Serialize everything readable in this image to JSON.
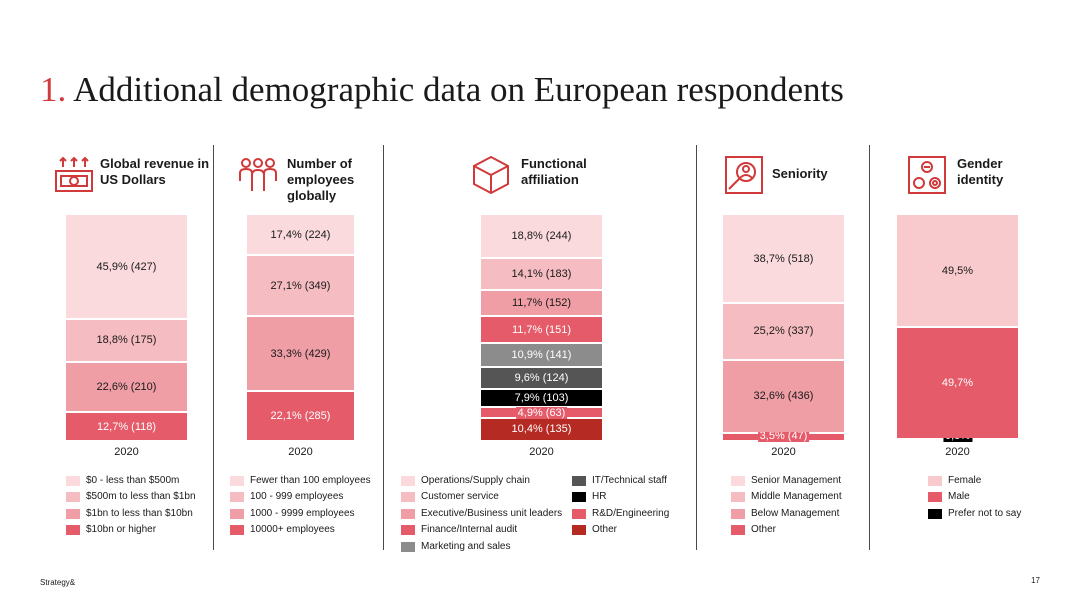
{
  "slide": {
    "title_number": "1.",
    "title_text": "Additional demographic data on European respondents",
    "footer": "Strategy&",
    "page_number": "17"
  },
  "colors": {
    "lightest": "#fadadd",
    "light": "#f5bcc1",
    "medium": "#ef9ea5",
    "red": "#e55b69",
    "darkgray": "#555555",
    "midgray": "#8c8c8c",
    "black": "#000000",
    "darkred": "#b52a22",
    "title_accent": "#d13a3a"
  },
  "chart_data": [
    {
      "type": "bar",
      "stacked": true,
      "title": "Global revenue in US Dollars",
      "icon": "money-growth-icon",
      "categories": [
        "2020"
      ],
      "series": [
        {
          "name": "$10bn or higher",
          "values": [
            12.7
          ],
          "label": "12,7% (118)",
          "color": "#e55b69"
        },
        {
          "name": "$1bn to less than $10bn",
          "values": [
            22.6
          ],
          "label": "22,6% (210)",
          "color": "#ef9ea5"
        },
        {
          "name": "$500m to less than $1bn",
          "values": [
            18.8
          ],
          "label": "18,8% (175)",
          "color": "#f5bcc1"
        },
        {
          "name": "$0 - less than $500m",
          "values": [
            45.9
          ],
          "label": "45,9% (427)",
          "color": "#fadadd"
        }
      ]
    },
    {
      "type": "bar",
      "stacked": true,
      "title": "Number of employees globally",
      "icon": "people-group-icon",
      "categories": [
        "2020"
      ],
      "series": [
        {
          "name": "10000+ employees",
          "values": [
            22.1
          ],
          "label": "22,1% (285)",
          "color": "#e55b69"
        },
        {
          "name": "1000 - 9999 employees",
          "values": [
            33.3
          ],
          "label": "33,3% (429)",
          "color": "#ef9ea5"
        },
        {
          "name": "100 - 999 employees",
          "values": [
            27.1
          ],
          "label": "27,1% (349)",
          "color": "#f5bcc1"
        },
        {
          "name": "Fewer than 100 employees",
          "values": [
            17.4
          ],
          "label": "17,4% (224)",
          "color": "#fadadd"
        }
      ]
    },
    {
      "type": "bar",
      "stacked": true,
      "title": "Functional affiliation",
      "icon": "cube-icon",
      "categories": [
        "2020"
      ],
      "series": [
        {
          "name": "Other",
          "values": [
            10.4
          ],
          "label": "10,4% (135)",
          "color": "#b52a22"
        },
        {
          "name": "R&D/Engineering",
          "values": [
            4.9
          ],
          "label": "4,9% (63)",
          "color": "#e55b69"
        },
        {
          "name": "HR",
          "values": [
            7.9
          ],
          "label": "7,9% (103)",
          "color": "#000000"
        },
        {
          "name": "IT/Technical staff",
          "values": [
            9.6
          ],
          "label": "9,6% (124)",
          "color": "#555555"
        },
        {
          "name": "Marketing and sales",
          "values": [
            10.9
          ],
          "label": "10,9% (141)",
          "color": "#8c8c8c"
        },
        {
          "name": "Finance/Internal audit",
          "values": [
            11.7
          ],
          "label": "11,7% (151)",
          "color": "#e55b69"
        },
        {
          "name": "Executive/Business unit leaders",
          "values": [
            11.7
          ],
          "label": "11,7% (152)",
          "color": "#ef9ea5"
        },
        {
          "name": "Customer service",
          "values": [
            14.1
          ],
          "label": "14,1% (183)",
          "color": "#f5bcc1"
        },
        {
          "name": "Operations/Supply chain",
          "values": [
            18.8
          ],
          "label": "18,8% (244)",
          "color": "#fadadd"
        }
      ]
    },
    {
      "type": "bar",
      "stacked": true,
      "title": "Seniority",
      "icon": "person-search-icon",
      "categories": [
        "2020"
      ],
      "series": [
        {
          "name": "Other",
          "values": [
            3.5
          ],
          "label": "3,5% (47)",
          "color": "#e55b69"
        },
        {
          "name": "Below Management",
          "values": [
            32.6
          ],
          "label": "32,6% (436)",
          "color": "#ef9ea5"
        },
        {
          "name": "Middle Management",
          "values": [
            25.2
          ],
          "label": "25,2% (337)",
          "color": "#f5bcc1"
        },
        {
          "name": "Senior Management",
          "values": [
            38.7
          ],
          "label": "38,7% (518)",
          "color": "#fadadd"
        }
      ]
    },
    {
      "type": "bar",
      "stacked": true,
      "title": "Gender identity",
      "icon": "gender-circles-icon",
      "categories": [
        "2020"
      ],
      "series": [
        {
          "name": "Prefer not to say",
          "values": [
            0.8
          ],
          "label": "0,8%",
          "color": "#000000"
        },
        {
          "name": "Male",
          "values": [
            49.7
          ],
          "label": "49,7%",
          "color": "#e55b69"
        },
        {
          "name": "Female",
          "values": [
            49.5
          ],
          "label": "49,5%",
          "color": "#f8cacd"
        }
      ]
    }
  ],
  "legends": [
    [
      {
        "label": "$0 - less than $500m",
        "color": "#fadadd"
      },
      {
        "label": "$500m to less than $1bn",
        "color": "#f5bcc1"
      },
      {
        "label": "$1bn to less than $10bn",
        "color": "#ef9ea5"
      },
      {
        "label": "$10bn or higher",
        "color": "#e55b69"
      }
    ],
    [
      {
        "label": "Fewer than 100 employees",
        "color": "#fadadd"
      },
      {
        "label": "100 - 999 employees",
        "color": "#f5bcc1"
      },
      {
        "label": "1000 - 9999 employees",
        "color": "#ef9ea5"
      },
      {
        "label": "10000+ employees",
        "color": "#e55b69"
      }
    ],
    [
      {
        "label": "Operations/Supply chain",
        "color": "#fadadd"
      },
      {
        "label": "Customer service",
        "color": "#f5bcc1"
      },
      {
        "label": "Executive/Business unit leaders",
        "color": "#ef9ea5"
      },
      {
        "label": "Finance/Internal audit",
        "color": "#e55b69"
      },
      {
        "label": "Marketing and sales",
        "color": "#8c8c8c"
      },
      {
        "label": "IT/Technical staff",
        "color": "#555555"
      },
      {
        "label": "HR",
        "color": "#000000"
      },
      {
        "label": "R&D/Engineering",
        "color": "#e55b69"
      },
      {
        "label": "Other",
        "color": "#b52a22"
      }
    ],
    [
      {
        "label": "Senior Management",
        "color": "#fadadd"
      },
      {
        "label": "Middle Management",
        "color": "#f5bcc1"
      },
      {
        "label": "Below Management",
        "color": "#ef9ea5"
      },
      {
        "label": "Other",
        "color": "#e55b69"
      }
    ],
    [
      {
        "label": "Female",
        "color": "#f8cacd"
      },
      {
        "label": "Male",
        "color": "#e55b69"
      },
      {
        "label": "Prefer not to say",
        "color": "#000000"
      }
    ]
  ]
}
